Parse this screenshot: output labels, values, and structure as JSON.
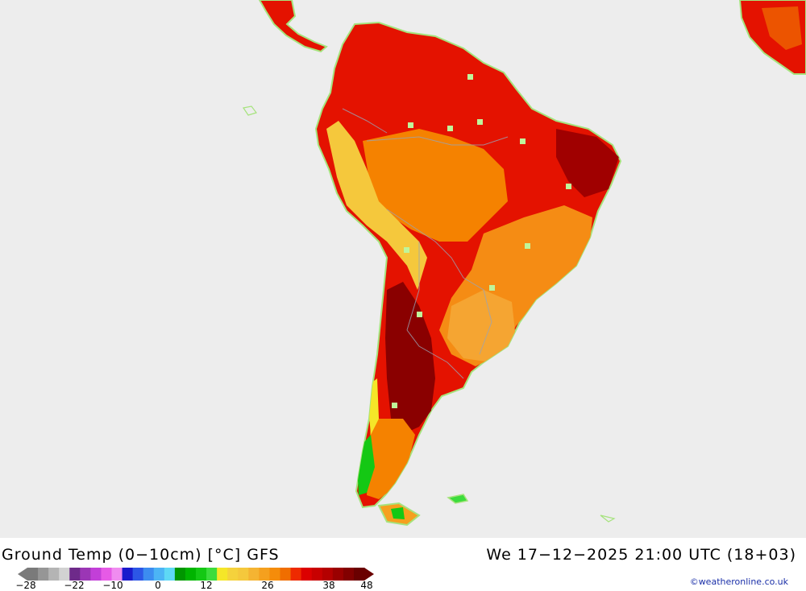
{
  "map": {
    "title": "Ground Temp (0−10cm) [°C] GFS",
    "valid_time": "We 17−12−2025 21:00 UTC (18+03)",
    "credit": "©weatheronline.co.uk",
    "background_color": "#ededed",
    "land_outline_color": "#a6e37d",
    "legend": {
      "tick_labels": [
        "−28",
        "−22",
        "−10",
        "0",
        "12",
        "26",
        "38",
        "48"
      ],
      "colors": [
        "#7a7a7a",
        "#969696",
        "#b4b4b4",
        "#d2d2d2",
        "#6e2a8a",
        "#9b36b5",
        "#c23fd8",
        "#e65ae6",
        "#f08cf0",
        "#1a1acc",
        "#2c56e6",
        "#3c8cf0",
        "#4cb4f5",
        "#5ed8f5",
        "#009600",
        "#00b400",
        "#14c814",
        "#3cdc3c",
        "#f5e628",
        "#f5d23c",
        "#f5c83c",
        "#f5b432",
        "#f5a01e",
        "#f58c0a",
        "#f06e00",
        "#ee2a00",
        "#dc0000",
        "#c80000",
        "#b40000",
        "#9a0000",
        "#820000",
        "#6a0000"
      ]
    }
  }
}
